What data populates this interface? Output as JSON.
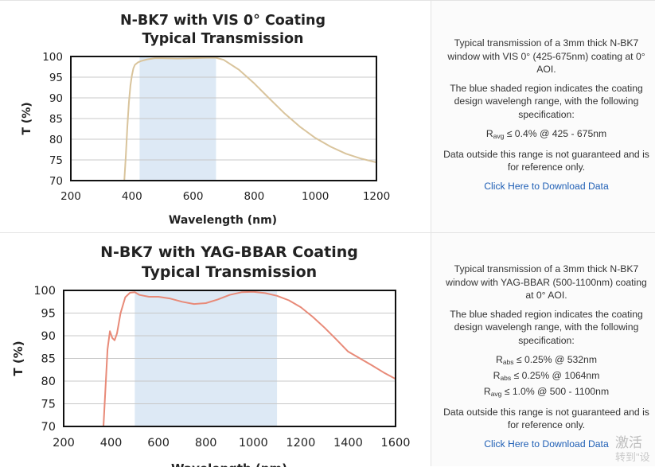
{
  "chart_data": [
    {
      "type": "line",
      "title_line1": "N-BK7 with VIS 0° Coating",
      "title_line2": "Typical Transmission",
      "xlabel": "Wavelength (nm)",
      "ylabel": "T (%)",
      "xlim": [
        200,
        1200
      ],
      "ylim": [
        70,
        100
      ],
      "x_ticks": [
        "200",
        "400",
        "600",
        "800",
        "1000",
        "1200"
      ],
      "y_ticks": [
        "70",
        "75",
        "80",
        "85",
        "90",
        "95",
        "100"
      ],
      "grid": "horizontal",
      "shaded_band": [
        425,
        675
      ],
      "shaded_color": "#dde9f5",
      "line_color": "#d9c49c",
      "series": [
        {
          "x": [
            375,
            380,
            385,
            390,
            395,
            400,
            405,
            410,
            420,
            430,
            450,
            475,
            500,
            550,
            600,
            650,
            675,
            700,
            750,
            800,
            850,
            900,
            950,
            1000,
            1050,
            1100,
            1150,
            1200
          ],
          "values": [
            70,
            76,
            83,
            89,
            93,
            95.5,
            97.2,
            98,
            98.6,
            98.9,
            99.3,
            99.6,
            99.6,
            99.5,
            99.6,
            99.7,
            99.7,
            99.2,
            96.8,
            93.5,
            89.8,
            86.2,
            83,
            80.3,
            78.2,
            76.5,
            75.3,
            74.4
          ]
        }
      ]
    },
    {
      "type": "line",
      "title_line1": "N-BK7 with YAG-BBAR Coating",
      "title_line2": "Typical Transmission",
      "xlabel": "Wavelength (nm)",
      "ylabel": "T (%)",
      "xlim": [
        200,
        1600
      ],
      "ylim": [
        70,
        100
      ],
      "x_ticks": [
        "200",
        "400",
        "600",
        "800",
        "1000",
        "1200",
        "1400",
        "1600"
      ],
      "y_ticks": [
        "70",
        "75",
        "80",
        "85",
        "90",
        "95",
        "100"
      ],
      "grid": "horizontal",
      "shaded_band": [
        500,
        1100
      ],
      "shaded_color": "#dde9f5",
      "line_color": "#e88a78",
      "series": [
        {
          "x": [
            368,
            375,
            385,
            395,
            405,
            415,
            425,
            440,
            460,
            480,
            500,
            520,
            560,
            600,
            650,
            700,
            750,
            800,
            850,
            900,
            950,
            1000,
            1050,
            1100,
            1150,
            1200,
            1250,
            1300,
            1350,
            1400,
            1450,
            1500,
            1550,
            1600
          ],
          "values": [
            70,
            77,
            87,
            91,
            89.5,
            89,
            90.5,
            95,
            98.5,
            99.5,
            99.6,
            99,
            98.6,
            98.6,
            98.2,
            97.5,
            97,
            97.2,
            98,
            99,
            99.6,
            99.7,
            99.4,
            98.8,
            97.8,
            96.3,
            94.2,
            91.8,
            89.2,
            86.5,
            85,
            83.5,
            81.9,
            80.5
          ]
        }
      ]
    }
  ],
  "descriptions": [
    {
      "para1": "Typical transmission of a 3mm thick N-BK7 window with VIS 0° (425-675nm) coating at 0° AOI.",
      "para2": "The blue shaded region indicates the coating design wavelengh range, with the following specification:",
      "specs": [
        {
          "symbol": "R",
          "sub": "avg",
          "rest": " ≤ 0.4% @ 425 - 675nm"
        }
      ],
      "para3": "Data outside this range is not guaranteed and is for reference only.",
      "link": "Click Here to Download Data"
    },
    {
      "para1": "Typical transmission of a 3mm thick N-BK7 window with YAG-BBAR (500-1100nm) coating at 0° AOI.",
      "para2": "The blue shaded region indicates the coating design wavelengh range, with the following specification:",
      "specs": [
        {
          "symbol": "R",
          "sub": "abs",
          "rest": " ≤ 0.25% @ 532nm"
        },
        {
          "symbol": "R",
          "sub": "abs",
          "rest": " ≤ 0.25% @ 1064nm"
        },
        {
          "symbol": "R",
          "sub": "avg",
          "rest": " ≤ 1.0% @ 500 - 1100nm"
        }
      ],
      "para3": "Data outside this range is not guaranteed and is for reference only.",
      "link": "Click Here to Download Data"
    }
  ],
  "watermark": {
    "line1": "激活",
    "line2": "转到\"设"
  }
}
